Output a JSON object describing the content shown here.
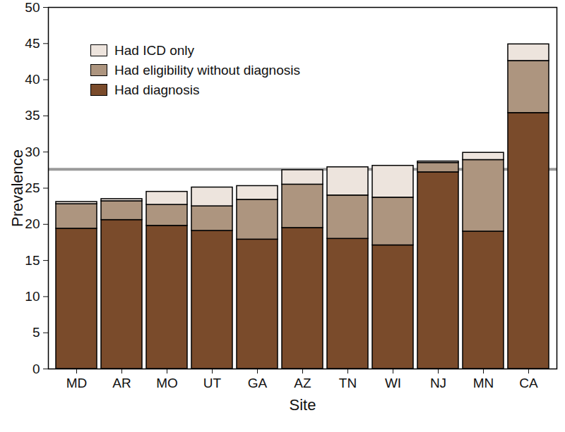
{
  "chart_data": {
    "type": "bar",
    "stacked": true,
    "x_label": "Site",
    "y_label": "Prevalence",
    "categories": [
      "MD",
      "AR",
      "MO",
      "UT",
      "GA",
      "AZ",
      "TN",
      "WI",
      "NJ",
      "MN",
      "CA"
    ],
    "series": [
      {
        "name": "Had diagnosis",
        "color": "#7a4b2b",
        "values": [
          19.4,
          20.6,
          19.8,
          19.1,
          17.9,
          19.5,
          18.0,
          17.1,
          27.2,
          19.0,
          35.4
        ]
      },
      {
        "name": "Had eligibility without diagnosis",
        "color": "#ad957f",
        "values": [
          3.4,
          2.6,
          2.9,
          3.4,
          5.5,
          6.0,
          6.0,
          6.6,
          1.3,
          9.9,
          7.2
        ]
      },
      {
        "name": "Had ICD only",
        "color": "#ede4dd",
        "values": [
          0.3,
          0.3,
          1.8,
          2.6,
          1.9,
          2.0,
          3.9,
          4.4,
          0.2,
          1.0,
          2.3
        ]
      }
    ],
    "reference_line": 27.6,
    "ylim": [
      0,
      50
    ],
    "yticks": [
      0,
      5,
      10,
      15,
      20,
      25,
      30,
      35,
      40,
      45,
      50
    ],
    "legend": "top-left"
  }
}
